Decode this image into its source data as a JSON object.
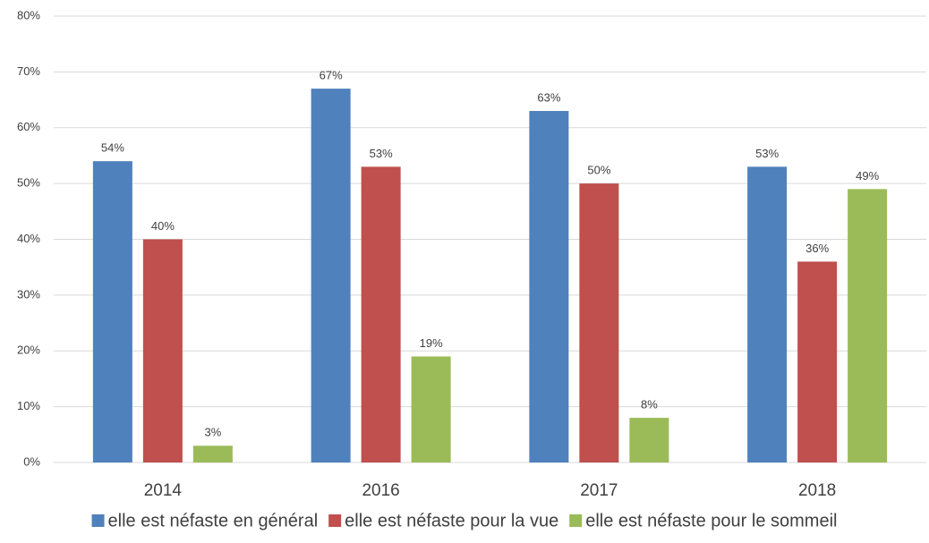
{
  "chart_data": {
    "type": "bar",
    "categories": [
      "2014",
      "2016",
      "2017",
      "2018"
    ],
    "series": [
      {
        "name": "elle est néfaste en général",
        "color": "#4f81bd",
        "values": [
          54,
          67,
          63,
          53
        ],
        "value_labels": [
          "54%",
          "67%",
          "63%",
          "53%"
        ]
      },
      {
        "name": "elle est néfaste pour la vue",
        "color": "#c0504d",
        "values": [
          40,
          53,
          50,
          36
        ],
        "value_labels": [
          "40%",
          "53%",
          "50%",
          "36%"
        ]
      },
      {
        "name": "elle est néfaste pour le sommeil",
        "color": "#9bbb59",
        "values": [
          3,
          19,
          8,
          49
        ],
        "value_labels": [
          "3%",
          "19%",
          "8%",
          "49%"
        ]
      }
    ],
    "ylim": [
      0,
      80
    ],
    "yticks": [
      {
        "value": 0,
        "label": "0%"
      },
      {
        "value": 10,
        "label": "10%"
      },
      {
        "value": 20,
        "label": "20%"
      },
      {
        "value": 30,
        "label": "30%"
      },
      {
        "value": 40,
        "label": "40%"
      },
      {
        "value": 50,
        "label": "50%"
      },
      {
        "value": 60,
        "label": "60%"
      },
      {
        "value": 70,
        "label": "70%"
      },
      {
        "value": 80,
        "label": "80%"
      }
    ],
    "grid": true,
    "legend": "bottom"
  }
}
